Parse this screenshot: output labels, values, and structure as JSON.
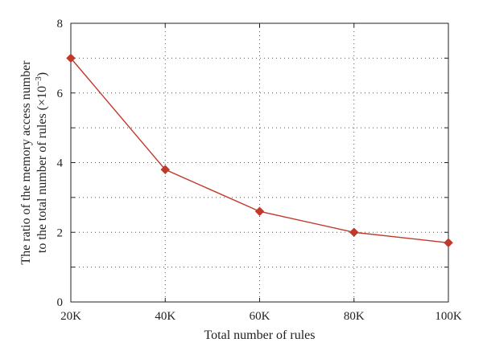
{
  "chart_data": {
    "type": "line",
    "xlabel": "Total number of rules",
    "ylabel_line1": "The ratio of the memory access number",
    "ylabel_line2_prefix": "to the total number of rules (×10",
    "ylabel_line2_exponent": "−3",
    "ylabel_line2_suffix": ")",
    "x_tick_labels": [
      "20K",
      "40K",
      "60K",
      "80K",
      "100K"
    ],
    "y_tick_labels": [
      "0",
      "2",
      "4",
      "6",
      "8"
    ],
    "x": [
      20000,
      40000,
      60000,
      80000,
      100000
    ],
    "xlim": [
      20000,
      100000
    ],
    "ylim": [
      0,
      8
    ],
    "grid": true,
    "grid_style": "dotted",
    "series": [
      {
        "values": [
          7.0,
          3.8,
          2.6,
          2.0,
          1.7
        ],
        "color": "#c0392b",
        "marker": "diamond"
      }
    ]
  }
}
